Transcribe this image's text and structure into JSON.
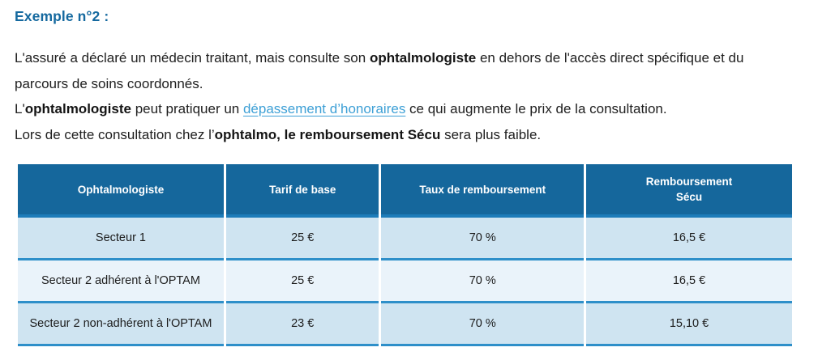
{
  "heading": "Exemple n°2 :",
  "intro": {
    "p1_text1": "L'assuré a déclaré un médecin traitant, mais consulte son ",
    "p1_bold": "ophtalmologiste",
    "p1_text2": " en dehors de l'accès direct spécifique et du parcours de soins coordonnés.",
    "p2_text1": "L'",
    "p2_bold": "ophtalmologiste",
    "p2_text2": " peut pratiquer un ",
    "p2_link": "dépassement d’honoraires",
    "p2_text3": " ce qui augmente le prix de la consultation.",
    "p3_text1": "Lors de cette consultation chez l’",
    "p3_bold": "ophtalmo, le remboursement Sécu",
    "p3_text2": " sera plus faible."
  },
  "table": {
    "headers": {
      "col1": "Ophtalmologiste",
      "col2": "Tarif de base",
      "col3": "Taux de remboursement",
      "col4": "Remboursement\nSécu"
    },
    "rows": [
      {
        "secteur": "Secteur 1",
        "tarif": "25 €",
        "taux": "70 %",
        "remboursement": "16,5 €"
      },
      {
        "secteur": "Secteur 2 adhérent à l'OPTAM",
        "tarif": "25 €",
        "taux": "70 %",
        "remboursement": "16,5 €"
      },
      {
        "secteur": "Secteur 2 non-adhérent à l'OPTAM",
        "tarif": "23 €",
        "taux": "70 %",
        "remboursement": "15,10 €"
      }
    ]
  },
  "colors": {
    "heading": "#15699f",
    "header_bg": "#15679c",
    "header_border": "#1d7cb9",
    "row_light": "#cfe4f1",
    "row_lighter": "#eaf3fa",
    "row_border": "#2e8fc9",
    "link": "#3ea0d6"
  }
}
